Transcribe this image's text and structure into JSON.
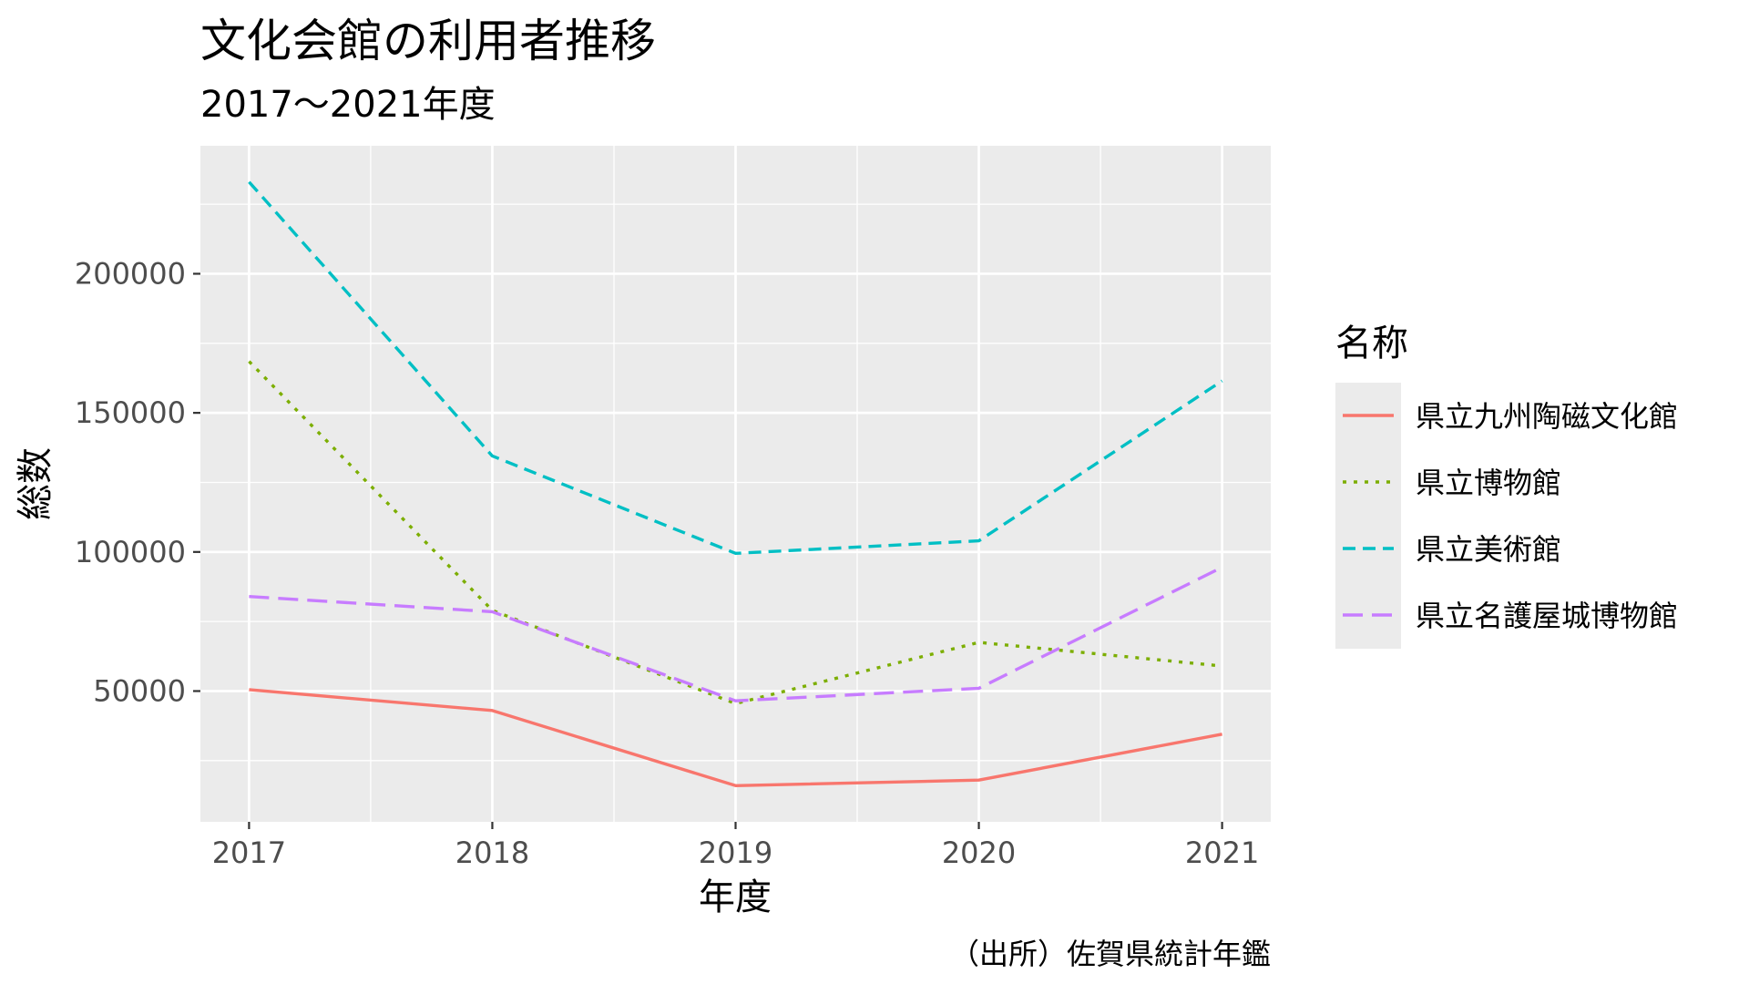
{
  "chart_data": {
    "type": "line",
    "title": "文化会館の利用者推移",
    "subtitle": "2017～2021年度",
    "xlabel": "年度",
    "ylabel": "総数",
    "caption": "（出所）佐賀県統計年鑑",
    "x": [
      2017,
      2018,
      2019,
      2020,
      2021
    ],
    "xlim": [
      2016.8,
      2021.2
    ],
    "ylim": [
      3000,
      246000
    ],
    "y_ticks": [
      50000,
      100000,
      150000,
      200000
    ],
    "grid": true,
    "legend": {
      "title": "名称",
      "position": "right"
    },
    "series": [
      {
        "name": "県立九州陶磁文化館",
        "values": [
          50500,
          43000,
          16000,
          18000,
          34500
        ],
        "color": "#F8766D",
        "dash": "solid"
      },
      {
        "name": "県立博物館",
        "values": [
          168500,
          79000,
          45500,
          67500,
          59000
        ],
        "color": "#7CAE00",
        "dash": "dotted"
      },
      {
        "name": "県立美術館",
        "values": [
          233000,
          134500,
          99500,
          104000,
          161500
        ],
        "color": "#00BFC4",
        "dash": "dashed"
      },
      {
        "name": "県立名護屋城博物館",
        "values": [
          84000,
          78500,
          46500,
          51000,
          94500
        ],
        "color": "#C77CFF",
        "dash": "longdash"
      }
    ]
  }
}
